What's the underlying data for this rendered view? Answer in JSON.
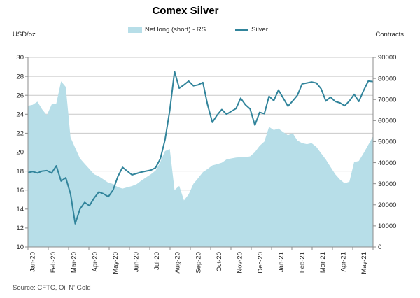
{
  "title": "Comex Silver",
  "axis_titles": {
    "left": "USD/oz",
    "right": "Contracts"
  },
  "legend": {
    "area_label": "Net long (short) - RS",
    "line_label": "Silver"
  },
  "source": "Source: CFTC, Oil N' Gold",
  "colors": {
    "area": "#B7DEE8",
    "line": "#31849B",
    "grid": "#C9C9C9",
    "axis": "#8C8C8C",
    "tick_text": "#262626",
    "title_text": "#000000",
    "source_text": "#4d4d4d"
  },
  "chart_data": {
    "type": "area",
    "subtype": "combo area + line, dual axis",
    "title": "Comex Silver",
    "x_unit": "weekly observations, Jan-2020 to May-2021",
    "x_tick_labels": [
      "Jan-20",
      "Feb-20",
      "Mar-20",
      "Apr-20",
      "May-20",
      "Jun-20",
      "Jul-20",
      "Aug-20",
      "Sep-20",
      "Oct-20",
      "Nov-20",
      "Dec-20",
      "Jan-21",
      "Feb-21",
      "Mar-21",
      "Apr-21",
      "May-21"
    ],
    "left_axis": {
      "title": "USD/oz",
      "min": 10,
      "max": 30,
      "step": 2
    },
    "right_axis": {
      "title": "Contracts",
      "min": 0,
      "max": 90000,
      "step": 10000
    },
    "grid": "horizontal gridlines on",
    "legend_position": "top-center",
    "series": [
      {
        "name": "Net long (short) - RS",
        "type": "area",
        "axis": "right",
        "color": "#B7DEE8",
        "values": [
          67000,
          67500,
          69000,
          65300,
          62500,
          67600,
          68100,
          78600,
          76000,
          52000,
          47000,
          42000,
          39500,
          37000,
          34500,
          33500,
          32000,
          30500,
          29900,
          28400,
          27700,
          28300,
          28900,
          29800,
          31500,
          33000,
          34500,
          36200,
          40400,
          45500,
          46500,
          27000,
          29000,
          22100,
          25000,
          30000,
          32600,
          35500,
          37000,
          38700,
          39300,
          40000,
          41500,
          42000,
          42400,
          42600,
          42600,
          43000,
          45000,
          48000,
          50000,
          57000,
          55500,
          56200,
          54500,
          53000,
          54000,
          50500,
          49300,
          48800,
          49300,
          47500,
          44500,
          41500,
          38000,
          34500,
          32000,
          30200,
          31000,
          40300,
          40800,
          44500,
          48500,
          52500
        ]
      },
      {
        "name": "Silver",
        "type": "line",
        "axis": "left",
        "color": "#31849B",
        "values": [
          17.85,
          17.95,
          17.8,
          18.0,
          18.05,
          17.8,
          18.55,
          16.95,
          17.3,
          15.6,
          12.45,
          14.0,
          14.7,
          14.35,
          15.15,
          15.8,
          15.6,
          15.3,
          16.0,
          17.4,
          18.4,
          18.0,
          17.6,
          17.75,
          17.9,
          18.0,
          18.1,
          18.35,
          19.3,
          21.3,
          24.4,
          28.5,
          26.75,
          27.1,
          27.5,
          27.0,
          27.1,
          27.35,
          25.0,
          23.15,
          23.9,
          24.5,
          24.0,
          24.3,
          24.6,
          25.7,
          25.0,
          24.55,
          22.85,
          24.2,
          24.05,
          25.9,
          25.45,
          26.55,
          25.7,
          24.85,
          25.4,
          26.0,
          27.2,
          27.3,
          27.4,
          27.3,
          26.7,
          25.4,
          25.8,
          25.35,
          25.2,
          24.9,
          25.4,
          26.1,
          25.35,
          26.5,
          27.5,
          27.45
        ]
      }
    ]
  }
}
